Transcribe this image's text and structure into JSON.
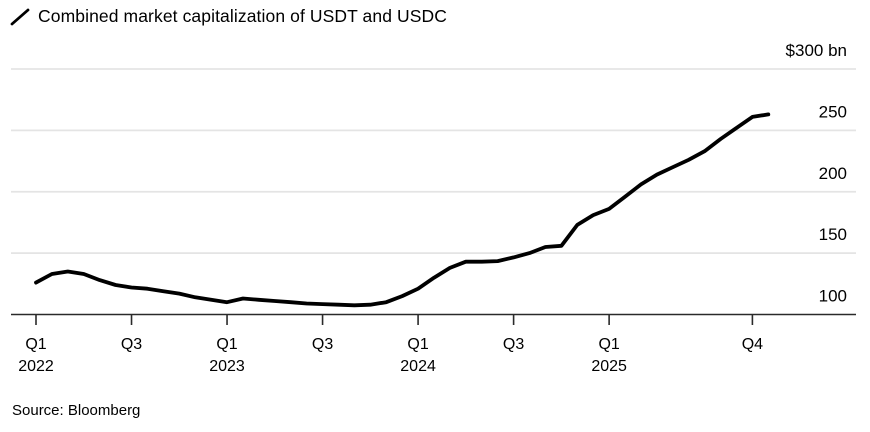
{
  "header": {
    "title": "Combined market capitalization of USDT and USDC"
  },
  "source_label": "Source: Bloomberg",
  "chart_data": {
    "type": "line",
    "title": "Combined market capitalization of USDT and USDC",
    "ylabel": "",
    "xlabel": "",
    "unit": "$ bn",
    "ylim": [
      100,
      300
    ],
    "grid": "horizontal",
    "legend_position": "top-left",
    "line_color": "#000000",
    "grid_color": "#e4e4e4",
    "axis_color": "#2a2a2a",
    "text_color": "#000000",
    "x": [
      "Jan 2022",
      "Feb 2022",
      "Mar 2022",
      "Apr 2022",
      "May 2022",
      "Jun 2022",
      "Jul 2022",
      "Aug 2022",
      "Sep 2022",
      "Oct 2022",
      "Nov 2022",
      "Dec 2022",
      "Jan 2023",
      "Feb 2023",
      "Mar 2023",
      "Apr 2023",
      "May 2023",
      "Jun 2023",
      "Jul 2023",
      "Aug 2023",
      "Sep 2023",
      "Oct 2023",
      "Nov 2023",
      "Dec 2023",
      "Jan 2024",
      "Feb 2024",
      "Mar 2024",
      "Apr 2024",
      "May 2024",
      "Jun 2024",
      "Jul 2024",
      "Aug 2024",
      "Sep 2024",
      "Oct 2024",
      "Nov 2024",
      "Dec 2024",
      "Jan 2025",
      "Feb 2025",
      "Mar 2025",
      "Apr 2025",
      "May 2025",
      "Jun 2025",
      "Jul 2025",
      "Aug 2025",
      "Sep 2025",
      "Oct 2025",
      "Nov 2025"
    ],
    "values": [
      126,
      133,
      135,
      133,
      128,
      124,
      122,
      121,
      119,
      117,
      114,
      112,
      110,
      113,
      112,
      111,
      110,
      109,
      108.5,
      108,
      107.5,
      108,
      110,
      115,
      121,
      130,
      138,
      143,
      143,
      143.5,
      146.5,
      150,
      155,
      156,
      173,
      181,
      186,
      196,
      206,
      214,
      220,
      226,
      233,
      243,
      252,
      261,
      263
    ],
    "y_ticks": [
      {
        "value": 300,
        "label": "$300 bn"
      },
      {
        "value": 250,
        "label": "250"
      },
      {
        "value": 200,
        "label": "200"
      },
      {
        "value": 150,
        "label": "150"
      },
      {
        "value": 100,
        "label": "100"
      }
    ],
    "x_ticks": [
      {
        "month_index": 0,
        "line1": "Q1",
        "line2": "2022"
      },
      {
        "month_index": 6,
        "line1": "Q3",
        "line2": ""
      },
      {
        "month_index": 12,
        "line1": "Q1",
        "line2": "2023"
      },
      {
        "month_index": 18,
        "line1": "Q3",
        "line2": ""
      },
      {
        "month_index": 24,
        "line1": "Q1",
        "line2": "2024"
      },
      {
        "month_index": 30,
        "line1": "Q3",
        "line2": ""
      },
      {
        "month_index": 36,
        "line1": "Q1",
        "line2": "2025"
      },
      {
        "month_index": 45,
        "line1": "Q4",
        "line2": ""
      }
    ],
    "source": "Source: Bloomberg"
  }
}
